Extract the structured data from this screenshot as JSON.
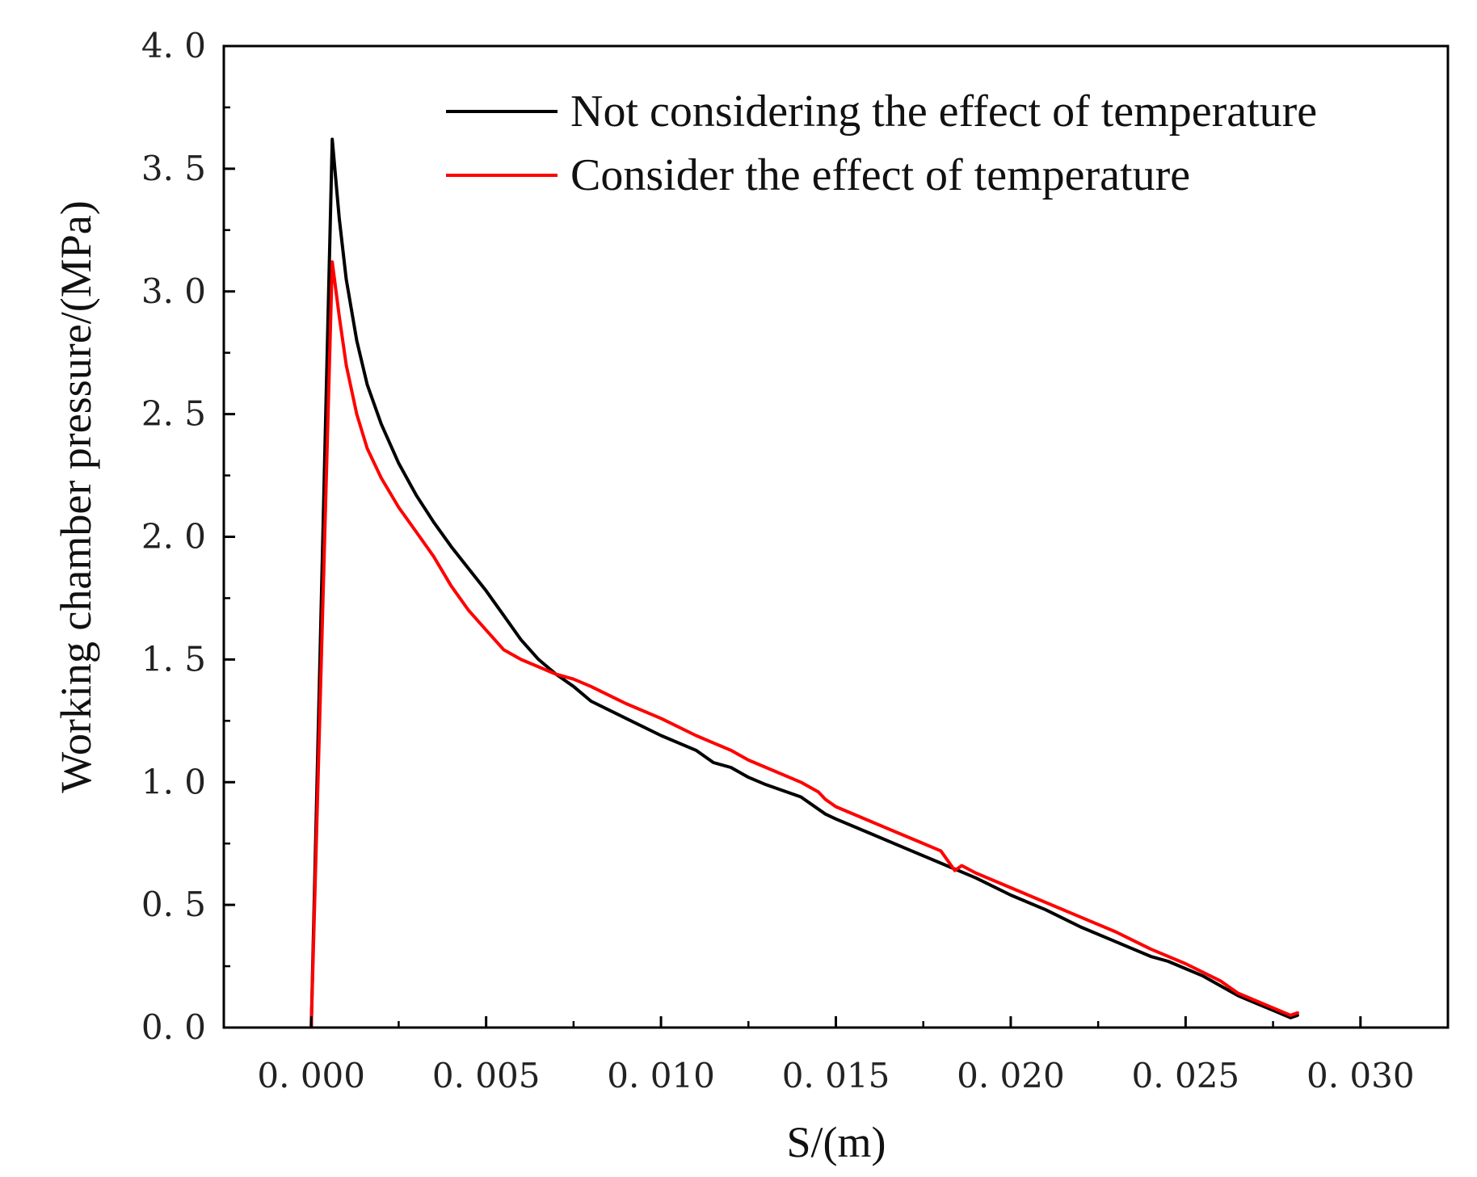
{
  "chart_data": {
    "type": "line",
    "title": "",
    "xlabel": "S/(m)",
    "ylabel": "Working chamber pressure/(MPa)",
    "xlim": [
      -0.0025,
      0.0325
    ],
    "ylim": [
      0.0,
      4.0
    ],
    "xticks": [
      0.0,
      0.005,
      0.01,
      0.015,
      0.02,
      0.025,
      0.03
    ],
    "xtick_labels": [
      "0. 000",
      "0. 005",
      "0. 010",
      "0. 015",
      "0. 020",
      "0. 025",
      "0. 030"
    ],
    "yticks": [
      0.0,
      0.5,
      1.0,
      1.5,
      2.0,
      2.5,
      3.0,
      3.5,
      4.0
    ],
    "ytick_labels": [
      "0. 0",
      "0. 5",
      "1. 0",
      "1. 5",
      "2. 0",
      "2. 5",
      "3. 0",
      "3. 5",
      "4. 0"
    ],
    "grid": false,
    "legend_position": "top-right",
    "series": [
      {
        "name": "Not considering the effect of temperature",
        "color": "#000000",
        "x": [
          0.0,
          0.0006,
          0.0008,
          0.001,
          0.0013,
          0.0016,
          0.002,
          0.0025,
          0.003,
          0.0035,
          0.004,
          0.0045,
          0.005,
          0.0055,
          0.006,
          0.0065,
          0.007,
          0.0075,
          0.008,
          0.009,
          0.01,
          0.011,
          0.0115,
          0.012,
          0.0125,
          0.013,
          0.014,
          0.0145,
          0.0147,
          0.015,
          0.016,
          0.017,
          0.018,
          0.019,
          0.02,
          0.021,
          0.022,
          0.023,
          0.024,
          0.0245,
          0.025,
          0.0255,
          0.026,
          0.0265,
          0.027,
          0.0275,
          0.028,
          0.0282
        ],
        "y": [
          0.0,
          3.62,
          3.3,
          3.05,
          2.8,
          2.62,
          2.46,
          2.3,
          2.17,
          2.06,
          1.96,
          1.87,
          1.78,
          1.68,
          1.58,
          1.5,
          1.44,
          1.39,
          1.33,
          1.26,
          1.19,
          1.13,
          1.08,
          1.06,
          1.02,
          0.99,
          0.94,
          0.89,
          0.87,
          0.85,
          0.79,
          0.73,
          0.67,
          0.61,
          0.54,
          0.48,
          0.41,
          0.35,
          0.29,
          0.27,
          0.24,
          0.21,
          0.17,
          0.13,
          0.1,
          0.07,
          0.04,
          0.05
        ]
      },
      {
        "name": "Consider the effect of temperature",
        "color": "#ff0000",
        "x": [
          0.0,
          0.0006,
          0.0008,
          0.001,
          0.0013,
          0.0016,
          0.002,
          0.0025,
          0.003,
          0.0035,
          0.004,
          0.0045,
          0.005,
          0.0055,
          0.006,
          0.0065,
          0.007,
          0.0075,
          0.008,
          0.009,
          0.01,
          0.011,
          0.0115,
          0.012,
          0.0125,
          0.013,
          0.014,
          0.0145,
          0.0147,
          0.015,
          0.016,
          0.017,
          0.018,
          0.0184,
          0.0186,
          0.019,
          0.02,
          0.021,
          0.022,
          0.023,
          0.024,
          0.025,
          0.026,
          0.0265,
          0.027,
          0.0275,
          0.028,
          0.0282
        ],
        "y": [
          0.0,
          3.12,
          2.9,
          2.7,
          2.5,
          2.36,
          2.24,
          2.12,
          2.02,
          1.92,
          1.8,
          1.7,
          1.62,
          1.54,
          1.5,
          1.47,
          1.44,
          1.42,
          1.39,
          1.32,
          1.26,
          1.19,
          1.16,
          1.13,
          1.09,
          1.06,
          1.0,
          0.96,
          0.93,
          0.9,
          0.84,
          0.78,
          0.72,
          0.64,
          0.66,
          0.63,
          0.57,
          0.51,
          0.45,
          0.39,
          0.32,
          0.26,
          0.19,
          0.14,
          0.11,
          0.08,
          0.05,
          0.06
        ]
      }
    ]
  }
}
